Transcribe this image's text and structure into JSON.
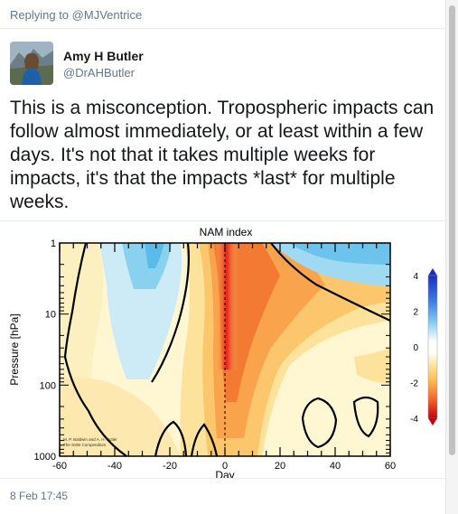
{
  "reply": {
    "prefix": "Replying to",
    "handle": "@MJVentrice"
  },
  "author": {
    "name": "Amy H Butler",
    "handle": "@DrAHButler"
  },
  "tweet": {
    "lines": [
      "This is a misconception. Tropospheric impacts can",
      "follow almost immediately, or at least within a few",
      "days.  It's not that it takes multiple weeks for",
      "impacts, it's that the impacts *last* for multiple",
      "weeks."
    ],
    "timestamp": "8 Feb 17:45"
  },
  "chart_data": {
    "type": "heatmap",
    "title": "NAM index",
    "xlabel": "Day",
    "ylabel": "Pressure [hPa]",
    "x_ticks": [
      "-60",
      "-40",
      "-20",
      "0",
      "20",
      "40",
      "60"
    ],
    "y_ticks": [
      "1",
      "10",
      "100",
      "1000"
    ],
    "xlim": [
      -60,
      60
    ],
    "ylim": [
      1000,
      1
    ],
    "y_scale": "log",
    "colorbar": {
      "ticks": [
        "4",
        "2",
        "0",
        "-2",
        "-4"
      ],
      "range": [
        -4,
        4
      ],
      "placement": "right"
    },
    "vertical_line_at": 0,
    "credit": [
      "M. P. Baldwin and A. H. Butler",
      "The SSW Compendium"
    ]
  }
}
